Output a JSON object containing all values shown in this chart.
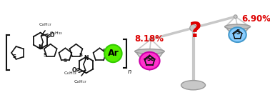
{
  "bg_color": "#ffffff",
  "left_pct": "8.18%",
  "right_pct": "6.90%",
  "left_element": "Se",
  "right_element": "S",
  "left_color": "#ff33cc",
  "left_edge": "#cc00aa",
  "right_color": "#88ccff",
  "right_edge": "#4499cc",
  "question_color": "#dd0000",
  "pct_color": "#dd0000",
  "ar_color": "#55ee00",
  "ar_edge": "#33cc00",
  "scale_color": "#c8c8c8",
  "scale_dark": "#999999",
  "bond_color": "#111111",
  "tilt_deg": 15
}
